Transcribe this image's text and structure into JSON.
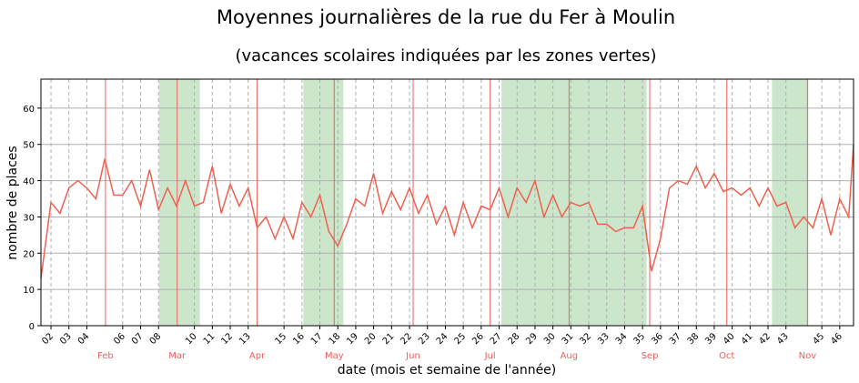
{
  "chart_data": {
    "type": "line",
    "title": "Moyennes journalières de la rue du Fer à Moulin",
    "subtitle": "(vacances scolaires indiquées par les zones vertes)",
    "x_label": "date (mois et semaine de l'année)",
    "y_label": "nombre de places",
    "xlim": [
      1.44,
      46.77
    ],
    "ylim": [
      0,
      68
    ],
    "yticks": [
      0,
      10,
      20,
      30,
      40,
      50,
      60
    ],
    "grid": true,
    "xticks": [
      {
        "value": 2,
        "label": "02"
      },
      {
        "value": 3,
        "label": "03"
      },
      {
        "value": 4,
        "label": "04"
      },
      {
        "value": 6,
        "label": "06"
      },
      {
        "value": 7,
        "label": "07"
      },
      {
        "value": 8,
        "label": "08"
      },
      {
        "value": 10,
        "label": "10"
      },
      {
        "value": 11,
        "label": "11"
      },
      {
        "value": 12,
        "label": "12"
      },
      {
        "value": 13,
        "label": "13"
      },
      {
        "value": 15,
        "label": "15"
      },
      {
        "value": 16,
        "label": "16"
      },
      {
        "value": 17,
        "label": "17"
      },
      {
        "value": 18,
        "label": "18"
      },
      {
        "value": 19,
        "label": "19"
      },
      {
        "value": 20,
        "label": "20"
      },
      {
        "value": 21,
        "label": "21"
      },
      {
        "value": 22,
        "label": "22"
      },
      {
        "value": 23,
        "label": "23"
      },
      {
        "value": 24,
        "label": "24"
      },
      {
        "value": 25,
        "label": "25"
      },
      {
        "value": 26,
        "label": "26"
      },
      {
        "value": 27,
        "label": "27"
      },
      {
        "value": 28,
        "label": "28"
      },
      {
        "value": 29,
        "label": "29"
      },
      {
        "value": 30,
        "label": "30"
      },
      {
        "value": 31,
        "label": "31"
      },
      {
        "value": 32,
        "label": "32"
      },
      {
        "value": 33,
        "label": "33"
      },
      {
        "value": 34,
        "label": "34"
      },
      {
        "value": 35,
        "label": "35"
      },
      {
        "value": 36,
        "label": "36"
      },
      {
        "value": 37,
        "label": "37"
      },
      {
        "value": 38,
        "label": "38"
      },
      {
        "value": 39,
        "label": "39"
      },
      {
        "value": 40,
        "label": "40"
      },
      {
        "value": 41,
        "label": "41"
      },
      {
        "value": 42,
        "label": "42"
      },
      {
        "value": 43,
        "label": "43"
      },
      {
        "value": 45,
        "label": "45"
      },
      {
        "value": 46,
        "label": "46"
      }
    ],
    "month_ticks": [
      {
        "value": 5.04,
        "label": "Feb"
      },
      {
        "value": 9.04,
        "label": "Mar"
      },
      {
        "value": 13.5,
        "label": "Apr"
      },
      {
        "value": 17.8,
        "label": "May"
      },
      {
        "value": 22.2,
        "label": "Jun"
      },
      {
        "value": 26.5,
        "label": "Jul"
      },
      {
        "value": 30.9,
        "label": "Aug"
      },
      {
        "value": 35.4,
        "label": "Sep"
      },
      {
        "value": 39.7,
        "label": "Oct"
      },
      {
        "value": 44.2,
        "label": "Nov"
      }
    ],
    "month_color": "#f0605a",
    "shaded_spans": [
      [
        8.03,
        10.31
      ],
      [
        16.08,
        18.31
      ],
      [
        27.13,
        35.23
      ],
      [
        42.22,
        44.25
      ]
    ],
    "shade_color": "#cce6cc",
    "series": [
      {
        "color": "#f0604f",
        "x": [
          1.44,
          2,
          2.5,
          3,
          3.5,
          4,
          4.5,
          5,
          5.5,
          6,
          6.5,
          7,
          7.5,
          8,
          8.5,
          9,
          9.5,
          10,
          10.5,
          11,
          11.5,
          12,
          12.5,
          13,
          13.5,
          14,
          14.5,
          15,
          15.5,
          16,
          16.5,
          17,
          17.5,
          18,
          18.5,
          19,
          19.5,
          20,
          20.5,
          21,
          21.5,
          22,
          22.5,
          23,
          23.5,
          24,
          24.5,
          25,
          25.5,
          26,
          26.5,
          27,
          27.5,
          28,
          28.5,
          29,
          29.5,
          30,
          30.5,
          31,
          31.5,
          32,
          32.5,
          33,
          33.5,
          34,
          34.5,
          35,
          35.5,
          36,
          36.5,
          37,
          37.5,
          38,
          38.5,
          39,
          39.5,
          40,
          40.5,
          41,
          41.5,
          42,
          42.5,
          43,
          43.5,
          44,
          44.5,
          45,
          45.5,
          46,
          46.5,
          46.77
        ],
        "values": [
          13,
          34,
          31,
          38,
          40,
          38,
          35,
          46,
          36,
          36,
          40,
          33,
          43,
          32,
          38,
          33,
          40,
          33,
          34,
          44,
          31,
          39,
          33,
          38,
          27,
          30,
          24,
          30,
          24,
          34,
          30,
          36,
          26,
          22,
          28,
          35,
          33,
          42,
          31,
          37,
          32,
          38,
          31,
          36,
          28,
          33,
          25,
          34,
          27,
          33,
          32,
          38,
          30,
          38,
          34,
          40,
          30,
          36,
          30,
          34,
          33,
          34,
          28,
          28,
          26,
          27,
          27,
          33,
          15,
          24,
          38,
          40,
          39,
          44,
          38,
          42,
          37,
          38,
          36,
          38,
          33,
          38,
          33,
          34,
          27,
          30,
          27,
          35,
          25,
          35,
          30,
          50
        ]
      }
    ]
  }
}
